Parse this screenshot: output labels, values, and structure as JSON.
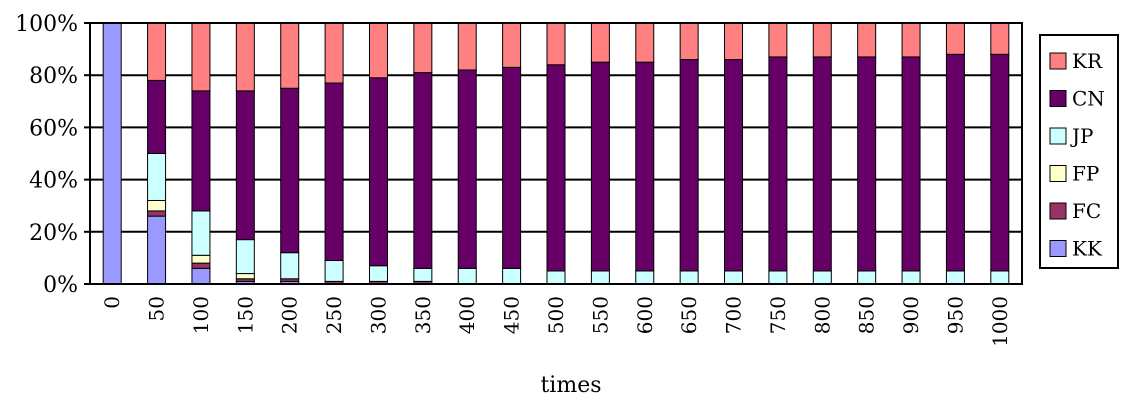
{
  "chart_data": {
    "type": "bar",
    "stacked": "percent",
    "categories": [
      "0",
      "50",
      "100",
      "150",
      "200",
      "250",
      "300",
      "350",
      "400",
      "450",
      "500",
      "550",
      "600",
      "650",
      "700",
      "750",
      "800",
      "850",
      "900",
      "950",
      "1000"
    ],
    "series": [
      {
        "name": "KK",
        "color": "#9999ff",
        "values": [
          100,
          26,
          6,
          1,
          1,
          0,
          0,
          0,
          0,
          0,
          0,
          0,
          0,
          0,
          0,
          0,
          0,
          0,
          0,
          0,
          0
        ]
      },
      {
        "name": "FC",
        "color": "#993366",
        "values": [
          0,
          2,
          2,
          1,
          1,
          1,
          1,
          1,
          0,
          0,
          0,
          0,
          0,
          0,
          0,
          0,
          0,
          0,
          0,
          0,
          0
        ]
      },
      {
        "name": "FP",
        "color": "#ffffcc",
        "values": [
          0,
          4,
          3,
          2,
          0,
          0,
          0,
          0,
          0,
          0,
          0,
          0,
          0,
          0,
          0,
          0,
          0,
          0,
          0,
          0,
          0
        ]
      },
      {
        "name": "JP",
        "color": "#ccffff",
        "values": [
          0,
          18,
          17,
          13,
          10,
          8,
          6,
          5,
          6,
          6,
          5,
          5,
          5,
          5,
          5,
          5,
          5,
          5,
          5,
          5,
          5
        ]
      },
      {
        "name": "CN",
        "color": "#660066",
        "values": [
          0,
          28,
          46,
          57,
          63,
          68,
          72,
          75,
          76,
          77,
          79,
          80,
          80,
          81,
          81,
          82,
          82,
          82,
          82,
          83,
          83
        ]
      },
      {
        "name": "KR",
        "color": "#ff8080",
        "values": [
          0,
          22,
          26,
          26,
          25,
          23,
          21,
          19,
          18,
          17,
          16,
          15,
          15,
          14,
          14,
          13,
          13,
          13,
          13,
          12,
          12
        ]
      }
    ],
    "yticks": [
      "0%",
      "20%",
      "40%",
      "60%",
      "80%",
      "100%"
    ],
    "ylim": [
      0,
      100
    ],
    "xlabel": "times",
    "ylabel": "",
    "title": "",
    "grid": true,
    "legend": {
      "position": "right",
      "order": [
        "KR",
        "CN",
        "JP",
        "FP",
        "FC",
        "KK"
      ]
    }
  }
}
